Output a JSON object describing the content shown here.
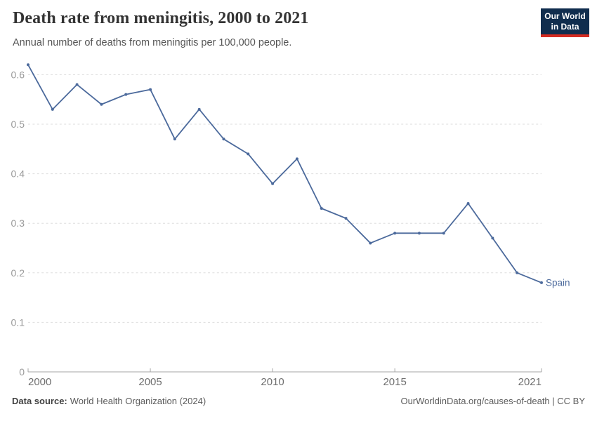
{
  "chart_data": {
    "type": "line",
    "title": "Death rate from meningitis, 2000 to 2021",
    "subtitle": "Annual number of deaths from meningitis per 100,000 people.",
    "x": [
      2000,
      2001,
      2002,
      2003,
      2004,
      2005,
      2006,
      2007,
      2008,
      2009,
      2010,
      2011,
      2012,
      2013,
      2014,
      2015,
      2016,
      2017,
      2018,
      2019,
      2020,
      2021
    ],
    "series": [
      {
        "name": "Spain",
        "color": "#4C6A9C",
        "values": [
          0.62,
          0.53,
          0.58,
          0.54,
          0.56,
          0.57,
          0.47,
          0.53,
          0.47,
          0.44,
          0.38,
          0.43,
          0.33,
          0.31,
          0.26,
          0.28,
          0.28,
          0.28,
          0.34,
          0.27,
          0.2,
          0.18
        ]
      }
    ],
    "xlabel": "",
    "ylabel": "",
    "x_ticks": [
      2000,
      2005,
      2010,
      2015,
      2021
    ],
    "y_ticks": [
      0,
      0.1,
      0.2,
      0.3,
      0.4,
      0.5,
      0.6
    ],
    "xlim": [
      2000,
      2021
    ],
    "ylim": [
      0,
      0.62
    ],
    "grid": "horizontal-dashed",
    "legend": "end-of-line-label"
  },
  "logo": {
    "line1": "Our World",
    "line2": "in Data",
    "bg_color": "#102D4E",
    "bar_color": "#D42B21"
  },
  "footer": {
    "source_label": "Data source:",
    "source_text": "World Health Organization (2024)",
    "credit": "OurWorldinData.org/causes-of-death | CC BY"
  }
}
